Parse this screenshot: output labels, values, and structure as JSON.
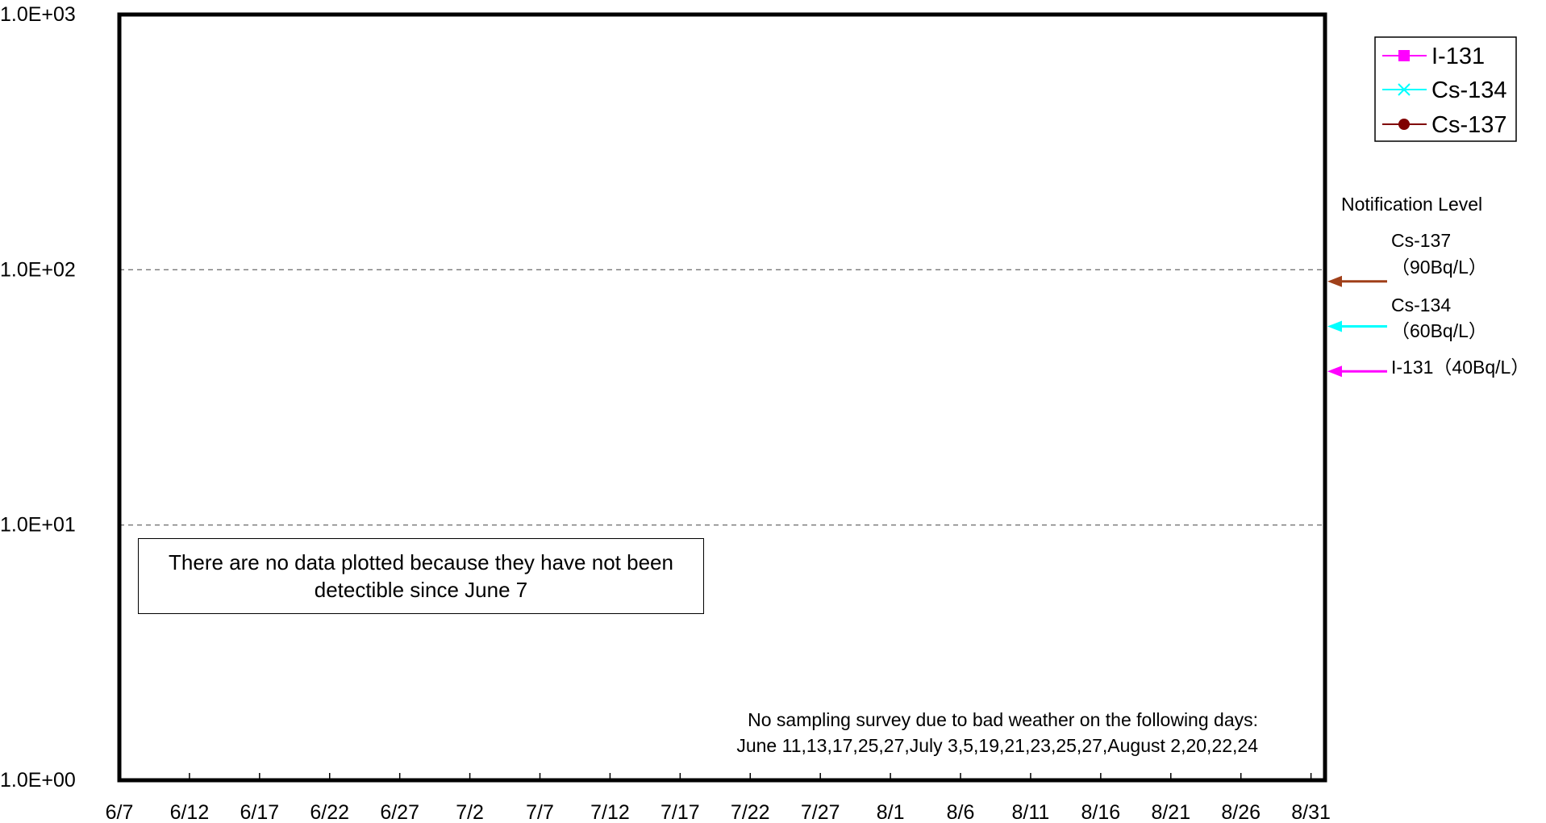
{
  "chart_data": {
    "type": "line",
    "title": "",
    "xlabel": "",
    "ylabel": "",
    "yscale": "log",
    "ylim": [
      1,
      1000
    ],
    "y_tick_labels": [
      "1.0E+00",
      "1.0E+01",
      "1.0E+02",
      "1.0E+03"
    ],
    "x_tick_labels": [
      "6/7",
      "6/12",
      "6/17",
      "6/22",
      "6/27",
      "7/2",
      "7/7",
      "7/12",
      "7/17",
      "7/22",
      "7/27",
      "8/1",
      "8/6",
      "8/11",
      "8/16",
      "8/21",
      "8/26",
      "8/31"
    ],
    "xlim": [
      "6/7",
      "9/1"
    ],
    "grid": "dashed horizontal lines at 1.0E+01 and 1.0E+02",
    "legend_position": "top-right",
    "series": [
      {
        "name": "I-131",
        "color": "#ff00ff",
        "marker": "square",
        "values": []
      },
      {
        "name": "Cs-134",
        "color": "#00ffff",
        "marker": "x",
        "values": []
      },
      {
        "name": "Cs-137",
        "color": "#800000",
        "marker": "circle",
        "values": []
      }
    ],
    "notification_level": {
      "title": "Notification Level",
      "levels": [
        {
          "label_line1": "Cs-137",
          "label_line2": "（90Bq/L）",
          "value": 90,
          "color": "#a0401a"
        },
        {
          "label_line1": "Cs-134",
          "label_line2": "（60Bq/L）",
          "value": 60,
          "color": "#00ffff"
        },
        {
          "label_line1": "I-131（40Bq/L）",
          "label_line2": "",
          "value": 40,
          "color": "#ff00ff"
        }
      ]
    },
    "annotations": {
      "no_data_box": [
        "There are no data plotted because they have not been",
        "detectible since June 7"
      ],
      "no_sampling_note": [
        "No sampling survey due to bad weather on the following days:",
        "June 11,13,17,25,27,July 3,5,19,21,23,25,27,August 2,20,22,24"
      ]
    }
  }
}
